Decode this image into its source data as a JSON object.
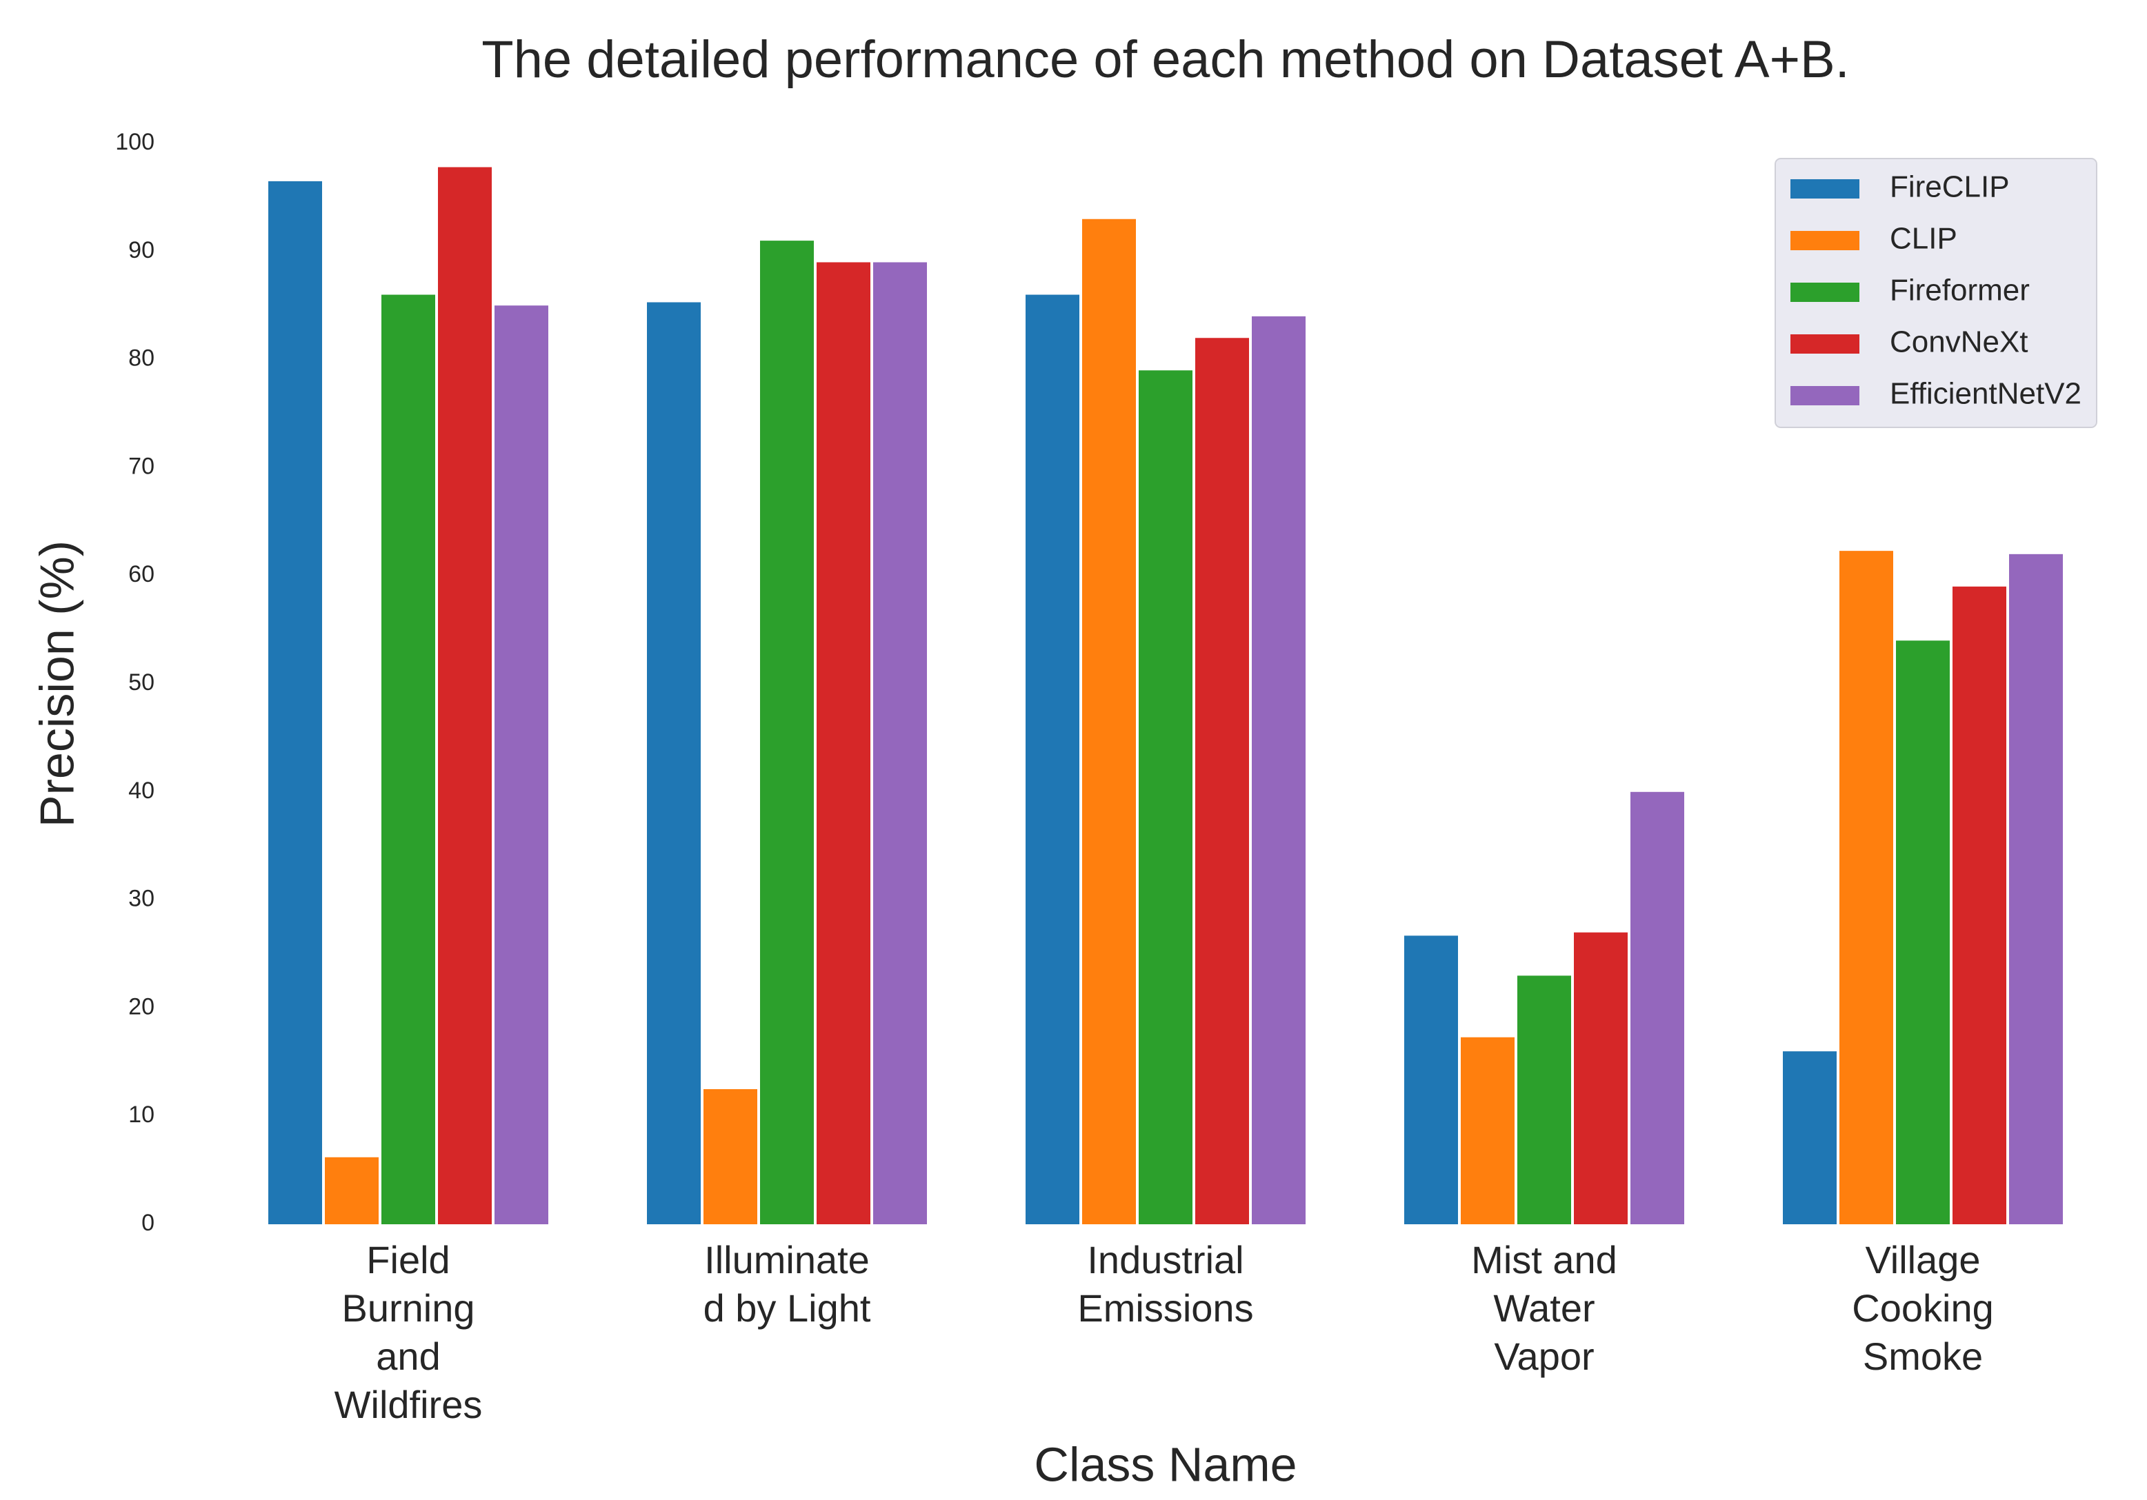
{
  "chart_data": {
    "type": "bar",
    "title": "The detailed performance of each method on Dataset A+B.",
    "x_label": "Class Name",
    "y_label": "Precision (%)",
    "categories": [
      [
        "Field",
        "Burning",
        "and",
        "Wildfires"
      ],
      [
        "Illuminate",
        "d by Light"
      ],
      [
        "Industrial",
        "Emissions"
      ],
      [
        "Mist and",
        "Water",
        "Vapor"
      ],
      [
        "Village",
        "Cooking",
        "Smoke"
      ]
    ],
    "series": [
      {
        "name": "FireCLIP",
        "color": "#1f77b4",
        "values": [
          96.5,
          85.3,
          86,
          26.7,
          16
        ]
      },
      {
        "name": "CLIP",
        "color": "#ff7f0e",
        "values": [
          6.2,
          12.5,
          93,
          17.3,
          62.3
        ]
      },
      {
        "name": "Fireformer",
        "color": "#2ca02c",
        "values": [
          86,
          91,
          79,
          23,
          54
        ]
      },
      {
        "name": "ConvNeXt",
        "color": "#d62728",
        "values": [
          97.8,
          89,
          82,
          27,
          59
        ]
      },
      {
        "name": "EfficientNetV2",
        "color": "#9467bd",
        "values": [
          85,
          89,
          84,
          40,
          62
        ]
      }
    ],
    "ylim": [
      0,
      100
    ],
    "yticks": [
      0,
      10,
      20,
      30,
      40,
      50,
      60,
      70,
      80,
      90,
      100
    ],
    "grid": false,
    "legend": "upper right"
  }
}
